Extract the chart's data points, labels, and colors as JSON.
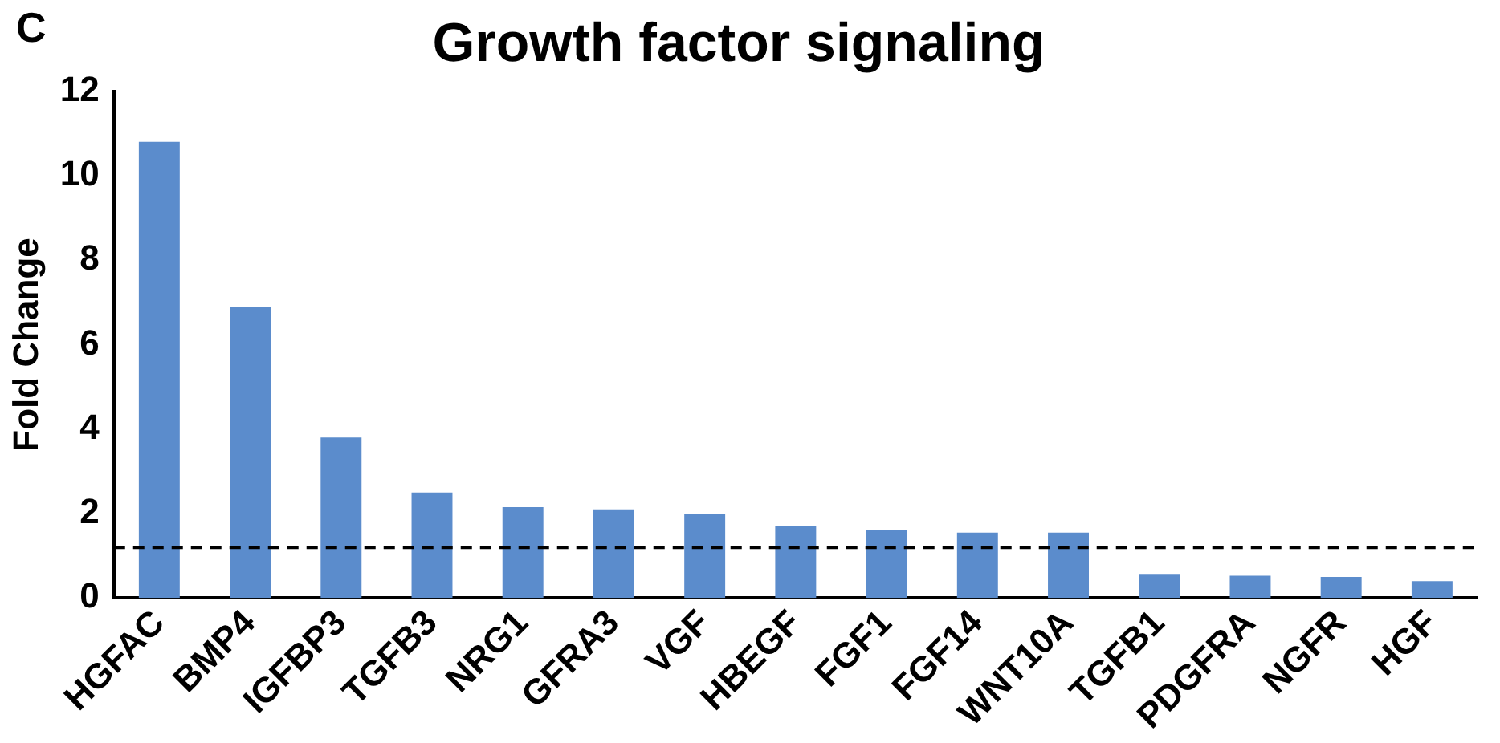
{
  "chart_data": {
    "type": "bar",
    "title": "Growth factor signaling",
    "ylabel": "Fold Change",
    "annotations": [
      "C"
    ],
    "categories": [
      "HGFAC",
      "BMP4",
      "IGFBP3",
      "TGFB3",
      "NRG1",
      "GFRA3",
      "VGF",
      "HBEGF",
      "FGF1",
      "FGF14",
      "WNT10A",
      "TGFB1",
      "PDGFRA",
      "NGFR",
      "HGF"
    ],
    "values": [
      10.8,
      6.9,
      3.8,
      2.5,
      2.15,
      2.1,
      2.0,
      1.7,
      1.6,
      1.55,
      1.55,
      0.57,
      0.53,
      0.5,
      0.4
    ],
    "color": "#5b8ccc",
    "ylim": [
      0,
      12
    ],
    "yticks": [
      0,
      2,
      4,
      6,
      8,
      10,
      12
    ],
    "grid": false,
    "legend": false,
    "ref_lines": [
      {
        "axis": "y",
        "value": 1.2,
        "color": "#000000",
        "line_style": "dashed"
      }
    ]
  }
}
